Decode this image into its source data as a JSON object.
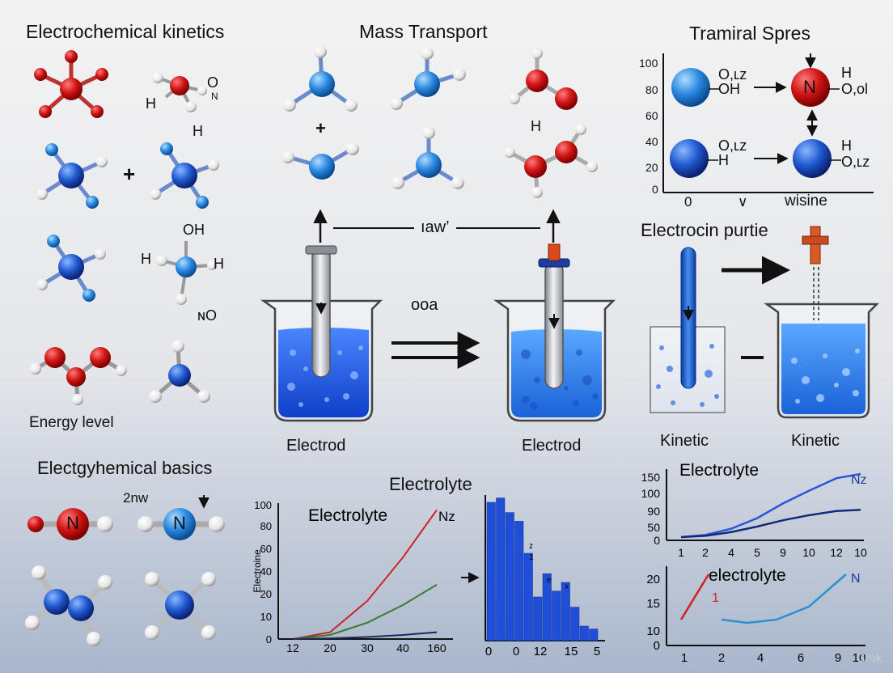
{
  "titles": {
    "kinetics": "Electrochemical kinetics",
    "mass_transport": "Mass Transport",
    "tramiral": "Tramiral Spres",
    "electrocin": "Electrocin purtie",
    "basics": "Electgyhemical basics",
    "electrolyte_main": "Electrolyte"
  },
  "labels": {
    "energy_level": "Energy level",
    "electrod_left": "Electrod",
    "electrod_right": "Electrod",
    "kinetic_left": "Kinetic",
    "kinetic_right": "Kinetic",
    "iaw": "ıaw’",
    "ooa": "ooa",
    "two_nw": "2nw",
    "mol_n": "N",
    "mol_h": "H",
    "mol_oh": "OH",
    "mol_no": "ɴO",
    "mol_o": "O",
    "mol_n_small": "N",
    "mol_h2": "H",
    "mol_h3": "H",
    "mass_h": "H",
    "plus": "+"
  },
  "tramiral": {
    "yticks": [
      "100",
      "80",
      "60",
      "40",
      "20",
      "0"
    ],
    "x0": "0",
    "xmid": "∨",
    "xlabel": "wisine",
    "top_left_a": "O,ʟz",
    "top_left_b": "OH",
    "top_right_a": "H",
    "top_right_b": "O,ol",
    "bot_left_a": "O,ʟz",
    "bot_left_b": "H",
    "bot_right_a": "H",
    "bot_right_b": "O,ʟz",
    "atom_n": "N"
  },
  "chart_data": [
    {
      "type": "line",
      "title": "Electrolyte",
      "ylabel": "Electroine",
      "xlabel": "",
      "x": [
        12,
        20,
        30,
        40,
        160
      ],
      "xticks": [
        "12",
        "20",
        "30",
        "40",
        "160"
      ],
      "yticks": [
        "100",
        "80",
        "60",
        "40",
        "20",
        "10",
        "0"
      ],
      "ylim": [
        0,
        100
      ],
      "series": [
        {
          "name": "Nz",
          "color": "#cc2222",
          "values": [
            0,
            5,
            28,
            60,
            95
          ]
        },
        {
          "color": "#3a7a2e",
          "values": [
            0,
            3,
            12,
            25,
            40
          ]
        },
        {
          "color": "#1a2a5a",
          "values": [
            0,
            0.5,
            1.5,
            3,
            5
          ]
        }
      ]
    },
    {
      "type": "bar",
      "xticks": [
        "0",
        "0",
        "12",
        "15",
        "5"
      ],
      "values": [
        95,
        98,
        88,
        82,
        60,
        30,
        46,
        34,
        40,
        23,
        10,
        8
      ],
      "annotations": [
        "z",
        "1",
        "e",
        "x"
      ],
      "color": "#1f4fd8"
    },
    {
      "type": "line",
      "title": "Electrolyte",
      "x": [
        1,
        2,
        4,
        5,
        9,
        10,
        12,
        10
      ],
      "xticks": [
        "1",
        "2",
        "4",
        "5",
        "9",
        "10",
        "12",
        "10"
      ],
      "yticks": [
        "150",
        "100",
        "90",
        "50",
        "0"
      ],
      "series": [
        {
          "name": "Nz",
          "color": "#2a56d8",
          "values": [
            0,
            5,
            20,
            45,
            80,
            110,
            140,
            150
          ]
        },
        {
          "color": "#142a78",
          "values": [
            0,
            3,
            12,
            25,
            40,
            52,
            62,
            65
          ]
        }
      ]
    },
    {
      "type": "line",
      "title": "electrolyte",
      "xticks": [
        "1",
        "2",
        "4",
        "6",
        "9",
        "10"
      ],
      "yticks": [
        "20",
        "15",
        "10",
        "0"
      ],
      "series": [
        {
          "name": "1",
          "color": "#d42020",
          "values": [
            8,
            22
          ]
        },
        {
          "name": "N",
          "color": "#2a90d0",
          "values": [
            8,
            7,
            8,
            12,
            19,
            22
          ]
        }
      ]
    }
  ],
  "watermark": "Grok",
  "colors": {
    "atom_red": "#cc1010",
    "atom_blue": "#1f58c8",
    "atom_white": "#f2f2f2",
    "bond": "#b8b8b8",
    "liquid": "#1e58e0"
  }
}
